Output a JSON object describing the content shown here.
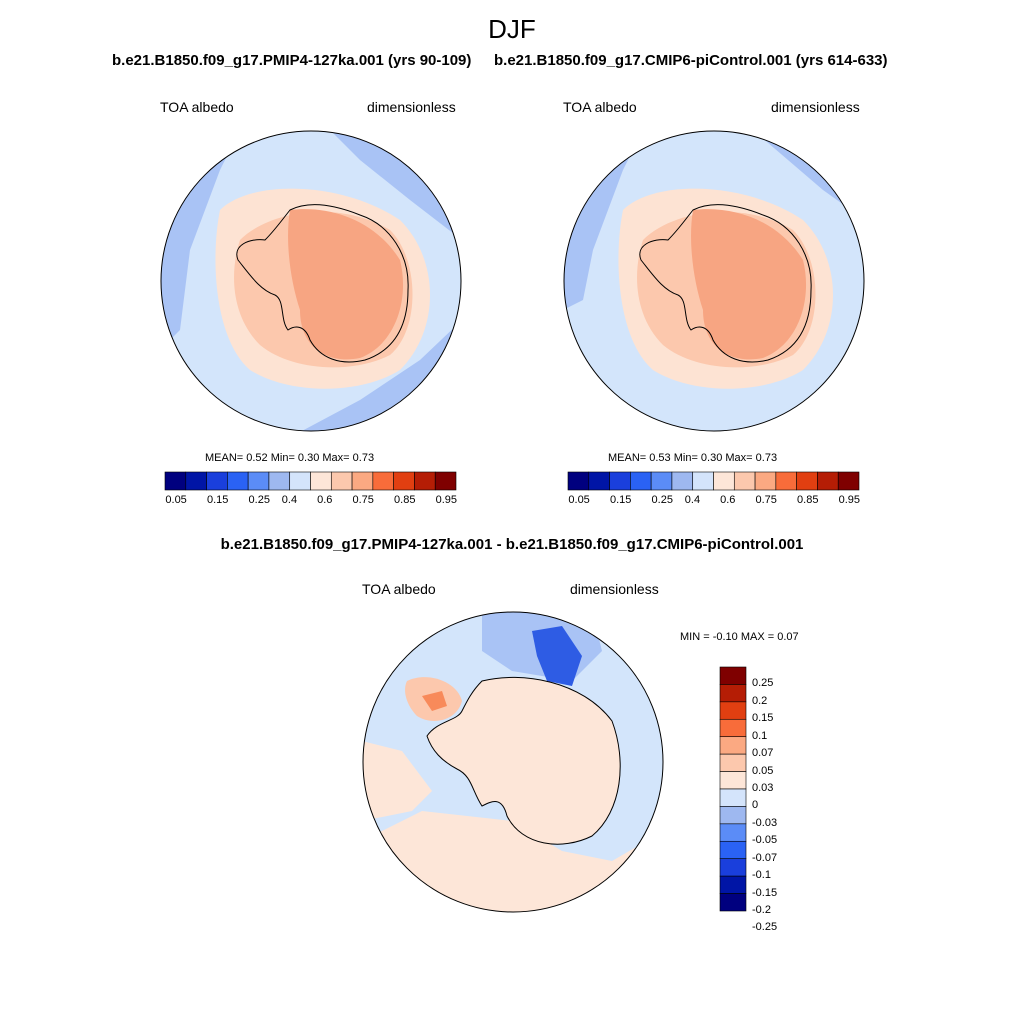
{
  "figure_title": "DJF",
  "colors": {
    "cbar_left": [
      "#00007f",
      "#0015a6",
      "#1a3fdc",
      "#2a62f4",
      "#5b8cf7",
      "#9eb8f0",
      "#d4e4fb",
      "#fde6d8",
      "#fcc8ad",
      "#fba982",
      "#f86c3a",
      "#e13f11",
      "#b51d05",
      "#7f0000"
    ],
    "diff_map": [
      "#00007f",
      "#0015a6",
      "#1a3fdc",
      "#2a62f4",
      "#5b8cf7",
      "#9eb8f0",
      "#d4e4fb",
      "#fde6d8",
      "#fcc8ad",
      "#fba982",
      "#f86c3a",
      "#e13f11",
      "#b51d05",
      "#7f0000"
    ],
    "continent_fill": "#f7a582",
    "ocean_light": "#d3e5fb",
    "seaice_band": "#fde3d3",
    "mid_blue": "#a9c3f5",
    "deep_blue": "#2e5ce4"
  },
  "panels": [
    {
      "subtitle": "b.e21.B1850.f09_g17.PMIP4-127ka.001 (yrs 90-109)",
      "left_label": "TOA albedo",
      "right_label": "dimensionless",
      "stats": "MEAN=   0.52  Min=   0.30  Max=   0.73",
      "colorbar_ticks": [
        "0.05",
        "0.15",
        "0.25",
        "0.4",
        "0.6",
        "0.75",
        "0.85",
        "0.95"
      ]
    },
    {
      "subtitle": "b.e21.B1850.f09_g17.CMIP6-piControl.001 (yrs 614-633)",
      "left_label": "TOA albedo",
      "right_label": "dimensionless",
      "stats": "MEAN=   0.53  Min=   0.30  Max=   0.73",
      "colorbar_ticks": [
        "0.05",
        "0.15",
        "0.25",
        "0.4",
        "0.6",
        "0.75",
        "0.85",
        "0.95"
      ]
    }
  ],
  "diff_panel": {
    "subtitle": "b.e21.B1850.f09_g17.PMIP4-127ka.001 - b.e21.B1850.f09_g17.CMIP6-piControl.001",
    "left_label": "TOA albedo",
    "right_label": "dimensionless",
    "stats": "MIN =  -0.10 MAX =   0.07",
    "colorbar_ticks": [
      "0.25",
      "0.2",
      "0.15",
      "0.1",
      "0.07",
      "0.05",
      "0.03",
      "0",
      "-0.03",
      "-0.05",
      "-0.07",
      "-0.1",
      "-0.15",
      "-0.2",
      "-0.25"
    ]
  }
}
